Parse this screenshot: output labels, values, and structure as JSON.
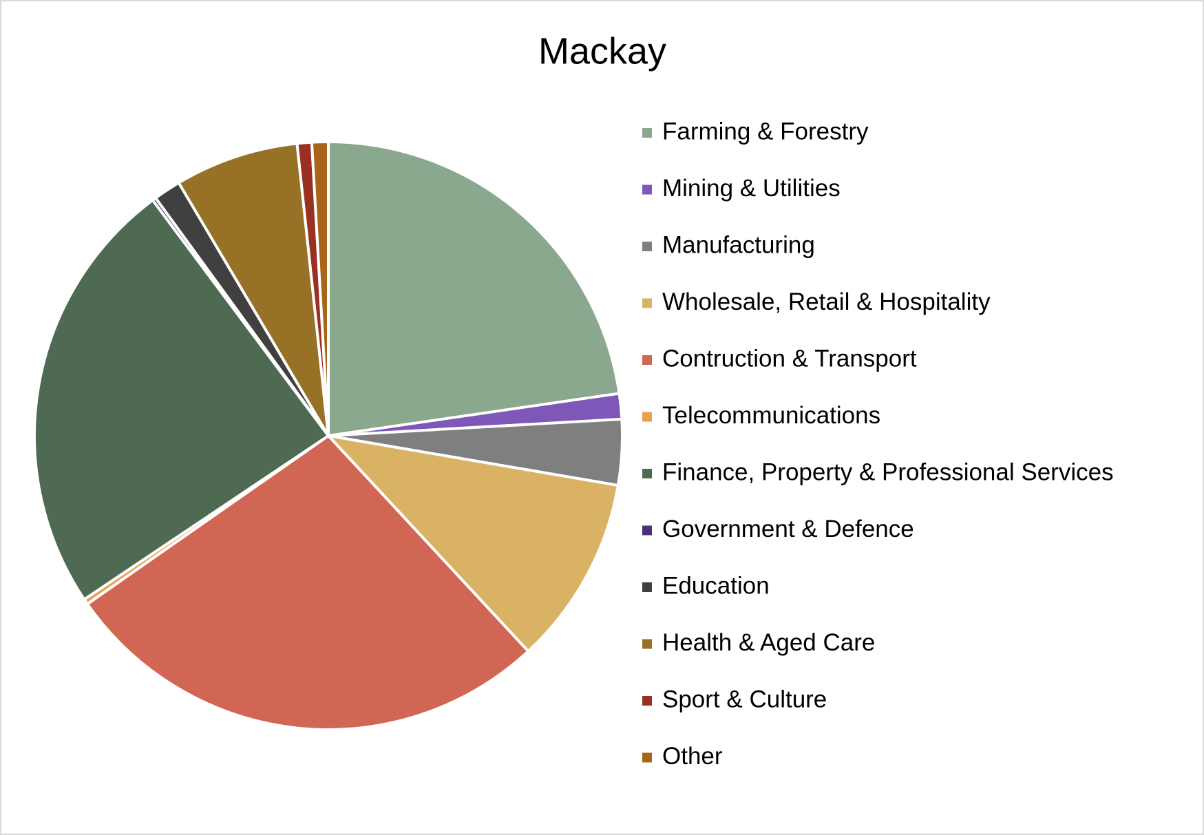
{
  "chart_data": {
    "type": "pie",
    "title": "Mackay",
    "categories": [
      "Farming & Forestry",
      "Mining & Utilities",
      "Manufacturing",
      "Wholesale, Retail & Hospitality",
      "Contruction & Transport",
      "Telecommunications",
      "Finance, Property & Professional Services",
      "Government & Defence",
      "Education",
      "Health & Aged Care",
      "Sport & Culture",
      "Other"
    ],
    "values": [
      22.7,
      1.4,
      3.6,
      10.4,
      27.2,
      0.3,
      24.2,
      0.2,
      1.5,
      6.8,
      0.8,
      0.9
    ],
    "colors": [
      "#8aa88e",
      "#7e57b8",
      "#7f7f7f",
      "#d9b263",
      "#d26654",
      "#e8a050",
      "#4e6a52",
      "#4b2f7a",
      "#404040",
      "#977226",
      "#9a3022",
      "#a86518"
    ],
    "legend": "right"
  }
}
